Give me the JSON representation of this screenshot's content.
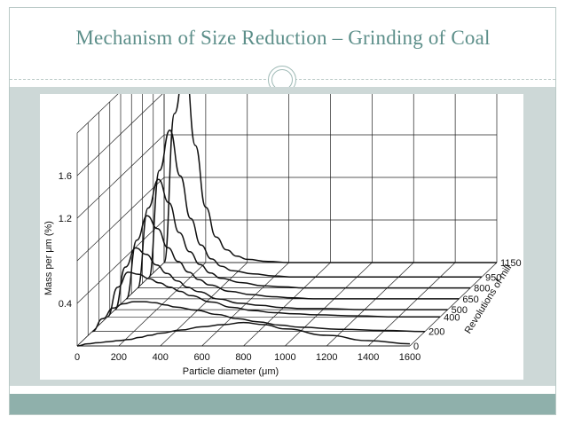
{
  "slide": {
    "title": "Mechanism of Size Reduction – Grinding of Coal"
  },
  "chart_data": {
    "type": "line",
    "style": "3d-waterfall",
    "xlabel": "Particle diameter (μm)",
    "ylabel": "Mass per μm (%)",
    "zlabel": "Revolutions of mill",
    "x_ticks": [
      0,
      200,
      400,
      600,
      800,
      1000,
      1200,
      1400,
      1600
    ],
    "y_ticks": [
      0.4,
      1.2,
      1.6
    ],
    "z_ticks": [
      0,
      200,
      400,
      500,
      650,
      800,
      950,
      1150
    ],
    "xlim": [
      0,
      1600
    ],
    "ylim": [
      0,
      2.0
    ],
    "grid": true,
    "x": [
      0,
      50,
      100,
      150,
      200,
      250,
      300,
      350,
      400,
      500,
      600,
      700,
      800,
      900,
      1000,
      1200,
      1400,
      1600
    ],
    "series": [
      {
        "revolutions": 0,
        "values": [
          0,
          0.02,
          0.03,
          0.04,
          0.05,
          0.06,
          0.08,
          0.1,
          0.12,
          0.15,
          0.18,
          0.2,
          0.22,
          0.2,
          0.16,
          0.1,
          0.05,
          0.02
        ]
      },
      {
        "revolutions": 200,
        "values": [
          0,
          0.12,
          0.22,
          0.26,
          0.28,
          0.28,
          0.27,
          0.25,
          0.23,
          0.2,
          0.16,
          0.12,
          0.09,
          0.06,
          0.04,
          0.02,
          0.01,
          0
        ]
      },
      {
        "revolutions": 400,
        "values": [
          0,
          0.28,
          0.42,
          0.4,
          0.36,
          0.32,
          0.28,
          0.24,
          0.2,
          0.14,
          0.09,
          0.06,
          0.04,
          0.03,
          0.02,
          0.01,
          0,
          0
        ]
      },
      {
        "revolutions": 500,
        "values": [
          0,
          0.4,
          0.58,
          0.52,
          0.42,
          0.34,
          0.27,
          0.21,
          0.17,
          0.1,
          0.06,
          0.04,
          0.02,
          0.01,
          0.01,
          0,
          0,
          0
        ]
      },
      {
        "revolutions": 650,
        "values": [
          0,
          0.55,
          0.78,
          0.66,
          0.48,
          0.35,
          0.25,
          0.18,
          0.13,
          0.07,
          0.04,
          0.02,
          0.01,
          0,
          0,
          0,
          0,
          0
        ]
      },
      {
        "revolutions": 800,
        "values": [
          0,
          0.75,
          1.02,
          0.8,
          0.52,
          0.34,
          0.22,
          0.14,
          0.09,
          0.05,
          0.02,
          0.01,
          0,
          0,
          0,
          0,
          0,
          0
        ]
      },
      {
        "revolutions": 950,
        "values": [
          0,
          1.0,
          1.38,
          0.95,
          0.55,
          0.3,
          0.17,
          0.1,
          0.06,
          0.03,
          0.01,
          0,
          0,
          0,
          0,
          0,
          0,
          0
        ]
      },
      {
        "revolutions": 1150,
        "values": [
          0,
          1.4,
          1.9,
          1.1,
          0.52,
          0.24,
          0.12,
          0.06,
          0.03,
          0.01,
          0,
          0,
          0,
          0,
          0,
          0,
          0,
          0
        ]
      }
    ]
  }
}
